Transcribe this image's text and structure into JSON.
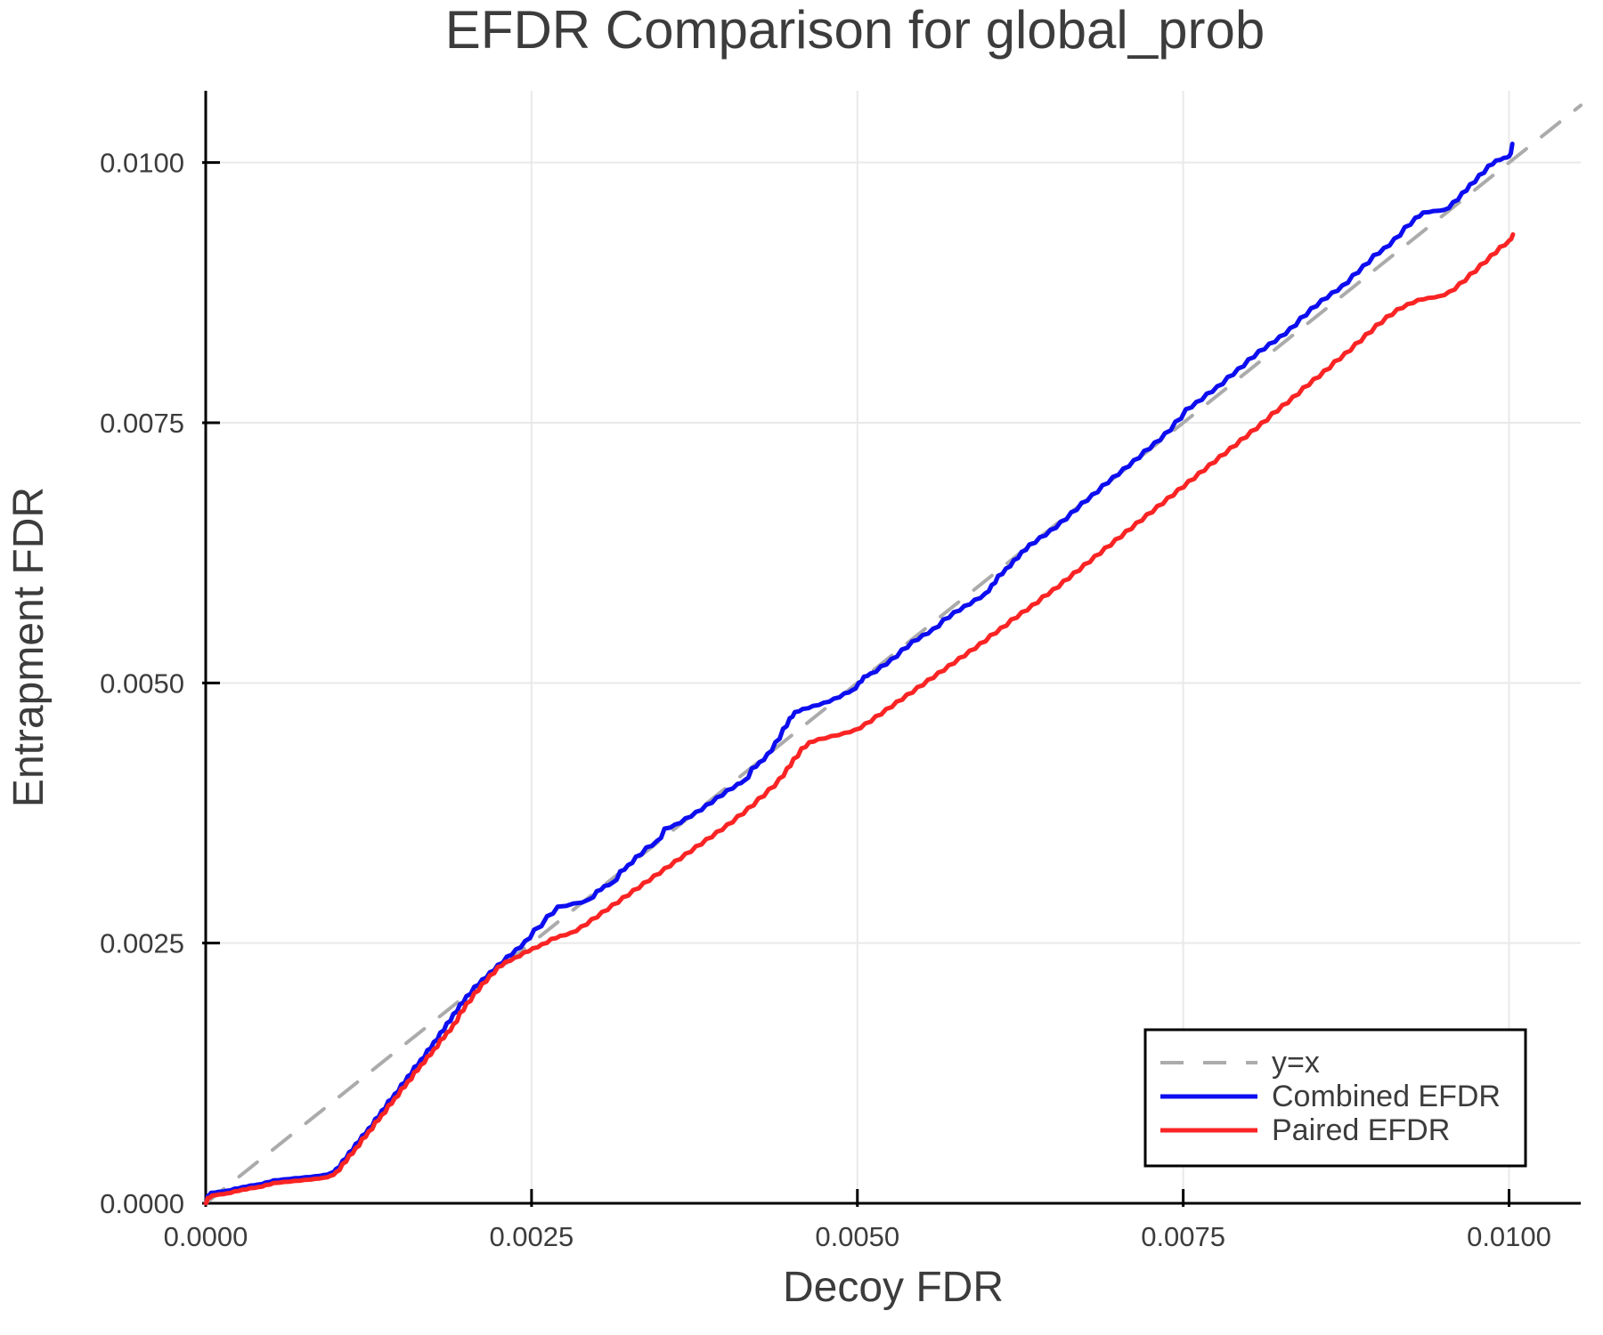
{
  "title": "EFDR Comparison for global_prob",
  "chart_data": {
    "type": "line",
    "title": "EFDR Comparison for global_prob",
    "xlabel": "Decoy FDR",
    "ylabel": "Entrapment FDR",
    "units_note": "all axis values and points are in units of 1e-4 (e.g. 25 = 0.0025)",
    "xlim": [
      0,
      105.5
    ],
    "ylim": [
      0,
      106.9
    ],
    "grid": true,
    "xticks": {
      "values": [
        0,
        25,
        50,
        75,
        100
      ],
      "labels": [
        "0.0000",
        "0.0025",
        "0.0050",
        "0.0075",
        "0.0100"
      ]
    },
    "yticks": {
      "values": [
        0,
        25,
        50,
        75,
        100
      ],
      "labels": [
        "0.0000",
        "0.0025",
        "0.0050",
        "0.0075",
        "0.0100"
      ]
    },
    "legend": {
      "position": "bottom-right",
      "entries": [
        {
          "label": "y=x",
          "color": "#ababab",
          "dashed": true
        },
        {
          "label": "Combined EFDR",
          "color": "#0d0df0",
          "dashed": false
        },
        {
          "label": "Paired EFDR",
          "color": "#fa2424",
          "dashed": false
        }
      ]
    },
    "series": [
      {
        "name": "y=x",
        "color": "#ababab",
        "dashed": true,
        "width": 4,
        "steps": false,
        "points": [
          [
            0,
            0
          ],
          [
            105.5,
            105.5
          ]
        ]
      },
      {
        "name": "Combined EFDR",
        "color": "#0d0df0",
        "dashed": false,
        "width": 5,
        "steps": true,
        "points": [
          [
            0,
            0
          ],
          [
            0.15,
            0.7
          ],
          [
            0.4,
            1.0
          ],
          [
            1.0,
            1.1
          ],
          [
            1.6,
            1.2
          ],
          [
            2.2,
            1.4
          ],
          [
            2.8,
            1.55
          ],
          [
            3.4,
            1.7
          ],
          [
            4.0,
            1.8
          ],
          [
            4.6,
            2.0
          ],
          [
            5.2,
            2.2
          ],
          [
            6.0,
            2.3
          ],
          [
            6.8,
            2.4
          ],
          [
            7.6,
            2.5
          ],
          [
            8.4,
            2.6
          ],
          [
            9.0,
            2.7
          ],
          [
            9.6,
            2.9
          ],
          [
            10.0,
            3.3
          ],
          [
            10.5,
            4.1
          ],
          [
            11.0,
            4.9
          ],
          [
            11.5,
            5.7
          ],
          [
            12.0,
            6.5
          ],
          [
            12.5,
            7.2
          ],
          [
            13.0,
            8.1
          ],
          [
            13.5,
            8.9
          ],
          [
            14.0,
            9.8
          ],
          [
            14.5,
            10.5
          ],
          [
            15.0,
            11.4
          ],
          [
            15.5,
            12.2
          ],
          [
            16.0,
            13.1
          ],
          [
            16.5,
            13.8
          ],
          [
            17.0,
            14.7
          ],
          [
            17.5,
            15.5
          ],
          [
            18.0,
            16.4
          ],
          [
            18.5,
            17.3
          ],
          [
            19.0,
            18.2
          ],
          [
            19.5,
            19.1
          ],
          [
            20.0,
            19.9
          ],
          [
            20.6,
            20.8
          ],
          [
            21.2,
            21.5
          ],
          [
            21.8,
            22.2
          ],
          [
            22.4,
            22.9
          ],
          [
            23.1,
            23.7
          ],
          [
            23.8,
            24.4
          ],
          [
            24.5,
            25.2
          ],
          [
            25.2,
            26.3
          ],
          [
            26.2,
            27.6
          ],
          [
            27.0,
            28.5
          ],
          [
            28.2,
            28.8
          ],
          [
            29.4,
            29.2
          ],
          [
            30.0,
            30.0
          ],
          [
            30.6,
            30.5
          ],
          [
            31.2,
            30.8
          ],
          [
            31.8,
            31.9
          ],
          [
            32.4,
            32.5
          ],
          [
            33.0,
            33.3
          ],
          [
            33.8,
            34.2
          ],
          [
            34.6,
            34.8
          ],
          [
            35.2,
            36.0
          ],
          [
            36.0,
            36.4
          ],
          [
            36.8,
            37.0
          ],
          [
            37.6,
            37.6
          ],
          [
            38.4,
            38.3
          ],
          [
            39.2,
            39.0
          ],
          [
            40.0,
            39.7
          ],
          [
            40.8,
            40.3
          ],
          [
            41.3,
            40.6
          ],
          [
            41.9,
            41.8
          ],
          [
            42.5,
            42.4
          ],
          [
            43.1,
            43.2
          ],
          [
            43.7,
            44.3
          ],
          [
            44.3,
            45.6
          ],
          [
            44.8,
            46.6
          ],
          [
            45.2,
            47.2
          ],
          [
            45.8,
            47.5
          ],
          [
            46.6,
            47.8
          ],
          [
            47.4,
            48.1
          ],
          [
            48.2,
            48.5
          ],
          [
            49.0,
            49.0
          ],
          [
            49.6,
            49.3
          ],
          [
            50.1,
            50.0
          ],
          [
            50.5,
            50.6
          ],
          [
            51.0,
            50.9
          ],
          [
            51.8,
            51.6
          ],
          [
            52.6,
            52.3
          ],
          [
            53.4,
            53.2
          ],
          [
            54.2,
            54.0
          ],
          [
            55.0,
            54.6
          ],
          [
            55.8,
            55.2
          ],
          [
            56.6,
            56.1
          ],
          [
            57.4,
            56.8
          ],
          [
            58.2,
            57.4
          ],
          [
            59.0,
            58.0
          ],
          [
            59.8,
            58.6
          ],
          [
            60.3,
            59.4
          ],
          [
            60.8,
            60.3
          ],
          [
            61.4,
            61.0
          ],
          [
            62.0,
            61.8
          ],
          [
            62.6,
            62.6
          ],
          [
            63.2,
            63.3
          ],
          [
            64.0,
            64.0
          ],
          [
            64.8,
            64.7
          ],
          [
            65.6,
            65.5
          ],
          [
            66.4,
            66.4
          ],
          [
            67.2,
            67.3
          ],
          [
            68.0,
            68.1
          ],
          [
            68.8,
            69.0
          ],
          [
            69.6,
            69.8
          ],
          [
            70.4,
            70.6
          ],
          [
            71.2,
            71.4
          ],
          [
            72.0,
            72.3
          ],
          [
            72.8,
            73.1
          ],
          [
            73.6,
            74.0
          ],
          [
            74.4,
            75.1
          ],
          [
            75.2,
            76.3
          ],
          [
            76.0,
            77.0
          ],
          [
            76.8,
            77.8
          ],
          [
            77.6,
            78.5
          ],
          [
            78.4,
            79.4
          ],
          [
            79.2,
            80.2
          ],
          [
            80.0,
            81.1
          ],
          [
            80.8,
            81.9
          ],
          [
            81.6,
            82.6
          ],
          [
            82.4,
            83.3
          ],
          [
            83.2,
            84.1
          ],
          [
            84.0,
            85.1
          ],
          [
            84.8,
            86.0
          ],
          [
            85.6,
            86.8
          ],
          [
            86.4,
            87.5
          ],
          [
            87.2,
            88.2
          ],
          [
            88.0,
            89.2
          ],
          [
            88.8,
            90.1
          ],
          [
            89.6,
            91.1
          ],
          [
            90.4,
            91.8
          ],
          [
            91.2,
            92.7
          ],
          [
            92.0,
            93.8
          ],
          [
            92.8,
            94.7
          ],
          [
            93.4,
            95.2
          ],
          [
            94.2,
            95.35
          ],
          [
            95.0,
            95.45
          ],
          [
            95.7,
            96.2
          ],
          [
            96.4,
            97.1
          ],
          [
            97.0,
            97.9
          ],
          [
            97.7,
            98.8
          ],
          [
            98.4,
            99.7
          ],
          [
            99.0,
            100.2
          ],
          [
            99.6,
            100.45
          ],
          [
            100.0,
            100.6
          ],
          [
            100.25,
            101.8
          ]
        ]
      },
      {
        "name": "Paired EFDR",
        "color": "#fa2424",
        "dashed": false,
        "width": 5,
        "steps": true,
        "points": [
          [
            0,
            0
          ],
          [
            0.15,
            0.5
          ],
          [
            0.5,
            0.75
          ],
          [
            1.0,
            0.85
          ],
          [
            1.6,
            0.95
          ],
          [
            2.2,
            1.15
          ],
          [
            2.8,
            1.3
          ],
          [
            3.4,
            1.45
          ],
          [
            4.0,
            1.55
          ],
          [
            4.6,
            1.75
          ],
          [
            5.2,
            1.95
          ],
          [
            6.0,
            2.05
          ],
          [
            6.8,
            2.15
          ],
          [
            7.6,
            2.25
          ],
          [
            8.4,
            2.35
          ],
          [
            9.0,
            2.45
          ],
          [
            9.6,
            2.65
          ],
          [
            10.0,
            3.0
          ],
          [
            10.5,
            3.8
          ],
          [
            11.0,
            4.6
          ],
          [
            11.5,
            5.3
          ],
          [
            12.0,
            6.2
          ],
          [
            12.5,
            6.9
          ],
          [
            13.0,
            7.8
          ],
          [
            13.5,
            8.5
          ],
          [
            14.0,
            9.4
          ],
          [
            14.5,
            10.1
          ],
          [
            15.0,
            11.0
          ],
          [
            15.5,
            11.7
          ],
          [
            16.0,
            12.6
          ],
          [
            16.5,
            13.3
          ],
          [
            17.0,
            14.1
          ],
          [
            17.5,
            14.8
          ],
          [
            18.0,
            15.7
          ],
          [
            18.5,
            16.4
          ],
          [
            19.0,
            17.2
          ],
          [
            19.5,
            18.3
          ],
          [
            20.0,
            19.2
          ],
          [
            20.6,
            20.2
          ],
          [
            21.2,
            21.1
          ],
          [
            21.8,
            21.9
          ],
          [
            22.4,
            22.7
          ],
          [
            23.0,
            23.2
          ],
          [
            23.7,
            23.6
          ],
          [
            24.4,
            24.1
          ],
          [
            25.1,
            24.5
          ],
          [
            25.8,
            24.9
          ],
          [
            26.5,
            25.4
          ],
          [
            27.2,
            25.7
          ],
          [
            28.0,
            26.0
          ],
          [
            28.8,
            26.6
          ],
          [
            29.6,
            27.3
          ],
          [
            30.4,
            28.0
          ],
          [
            31.2,
            28.7
          ],
          [
            32.0,
            29.4
          ],
          [
            32.8,
            30.1
          ],
          [
            33.6,
            30.8
          ],
          [
            34.4,
            31.5
          ],
          [
            35.2,
            32.2
          ],
          [
            36.0,
            32.9
          ],
          [
            36.8,
            33.6
          ],
          [
            37.6,
            34.3
          ],
          [
            38.4,
            35.0
          ],
          [
            39.2,
            35.7
          ],
          [
            40.0,
            36.4
          ],
          [
            40.8,
            37.2
          ],
          [
            41.6,
            38.0
          ],
          [
            42.4,
            38.9
          ],
          [
            43.2,
            39.8
          ],
          [
            44.0,
            40.8
          ],
          [
            44.6,
            41.8
          ],
          [
            45.1,
            42.7
          ],
          [
            45.7,
            43.7
          ],
          [
            46.3,
            44.3
          ],
          [
            47.0,
            44.6
          ],
          [
            48.0,
            44.9
          ],
          [
            49.0,
            45.2
          ],
          [
            49.8,
            45.5
          ],
          [
            50.6,
            46.1
          ],
          [
            51.4,
            46.8
          ],
          [
            52.2,
            47.5
          ],
          [
            53.0,
            48.2
          ],
          [
            53.8,
            48.9
          ],
          [
            54.6,
            49.6
          ],
          [
            55.4,
            50.3
          ],
          [
            56.2,
            51.0
          ],
          [
            57.0,
            51.7
          ],
          [
            57.8,
            52.4
          ],
          [
            58.6,
            53.1
          ],
          [
            59.4,
            53.8
          ],
          [
            60.2,
            54.6
          ],
          [
            61.0,
            55.3
          ],
          [
            61.8,
            56.1
          ],
          [
            62.6,
            56.8
          ],
          [
            63.4,
            57.5
          ],
          [
            64.2,
            58.3
          ],
          [
            65.0,
            59.0
          ],
          [
            65.8,
            59.8
          ],
          [
            66.6,
            60.6
          ],
          [
            67.4,
            61.4
          ],
          [
            68.2,
            62.2
          ],
          [
            69.0,
            63.0
          ],
          [
            69.8,
            63.8
          ],
          [
            70.6,
            64.6
          ],
          [
            71.4,
            65.4
          ],
          [
            72.2,
            66.2
          ],
          [
            73.0,
            67.0
          ],
          [
            73.8,
            67.8
          ],
          [
            74.6,
            68.6
          ],
          [
            75.4,
            69.4
          ],
          [
            76.2,
            70.2
          ],
          [
            77.0,
            71.0
          ],
          [
            77.8,
            71.8
          ],
          [
            78.6,
            72.6
          ],
          [
            79.4,
            73.4
          ],
          [
            80.2,
            74.2
          ],
          [
            81.0,
            75.0
          ],
          [
            81.8,
            75.9
          ],
          [
            82.6,
            76.7
          ],
          [
            83.4,
            77.5
          ],
          [
            84.2,
            78.4
          ],
          [
            85.0,
            79.2
          ],
          [
            85.8,
            80.0
          ],
          [
            86.6,
            80.9
          ],
          [
            87.4,
            81.7
          ],
          [
            88.2,
            82.6
          ],
          [
            89.0,
            83.5
          ],
          [
            89.8,
            84.4
          ],
          [
            90.6,
            85.2
          ],
          [
            91.4,
            85.9
          ],
          [
            92.2,
            86.4
          ],
          [
            93.0,
            86.8
          ],
          [
            93.8,
            87.0
          ],
          [
            94.6,
            87.15
          ],
          [
            95.4,
            87.6
          ],
          [
            96.2,
            88.4
          ],
          [
            97.0,
            89.3
          ],
          [
            97.8,
            90.2
          ],
          [
            98.6,
            91.1
          ],
          [
            99.3,
            91.9
          ],
          [
            100.0,
            92.5
          ],
          [
            100.3,
            93.1
          ]
        ]
      }
    ]
  }
}
